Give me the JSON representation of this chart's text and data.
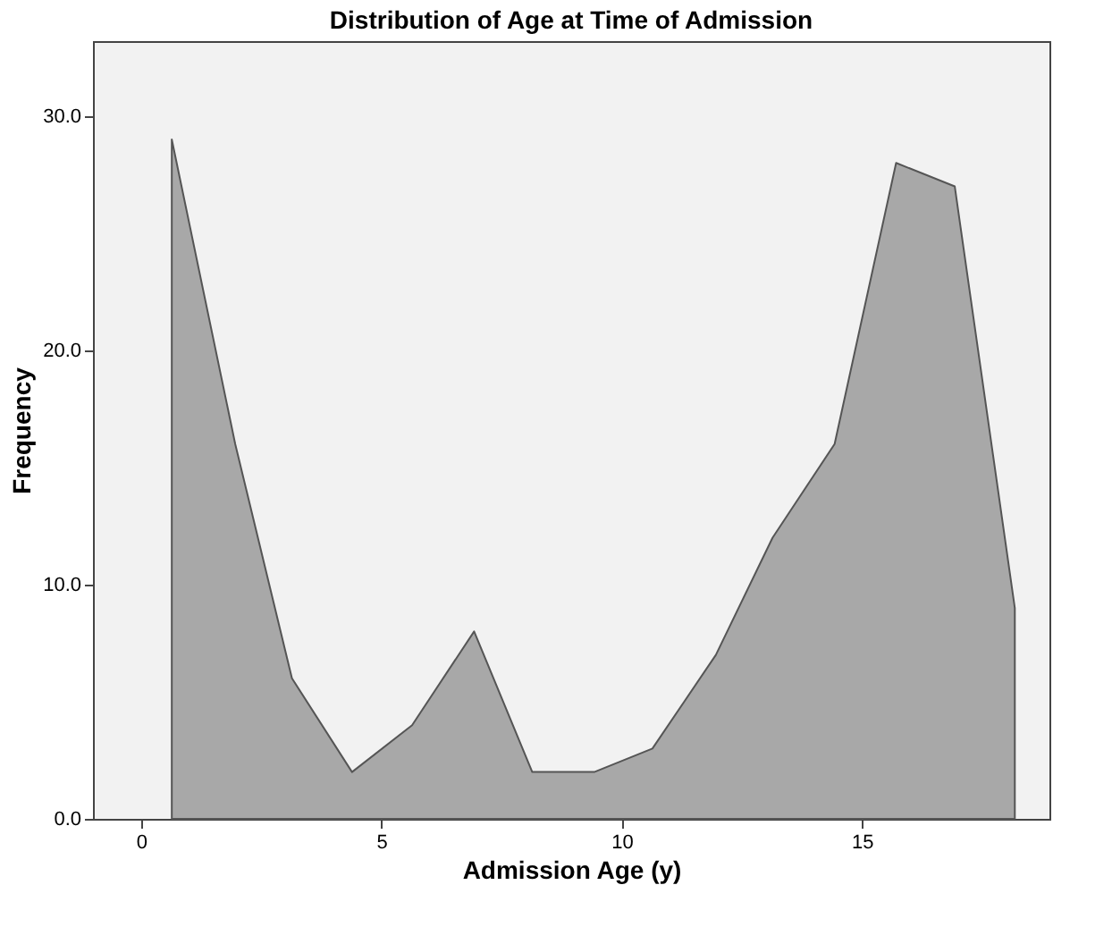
{
  "chart_data": {
    "type": "area",
    "title": "Distribution of Age at Time of Admission",
    "xlabel": "Admission Age (y)",
    "ylabel": "Frequency",
    "x": [
      0.64,
      1.96,
      3.14,
      4.39,
      5.64,
      6.93,
      8.14,
      9.43,
      10.64,
      11.96,
      13.14,
      14.43,
      15.71,
      16.93,
      18.18
    ],
    "series": [
      {
        "color": "#a8a8a8",
        "values": [
          29,
          16,
          6,
          2,
          4,
          8,
          2,
          2,
          3,
          7,
          12,
          16,
          28,
          27,
          9
        ]
      }
    ],
    "xlim": [
      -1,
      18.9
    ],
    "xticks": [
      0,
      5,
      10,
      15
    ],
    "ylim": [
      0,
      33.2
    ],
    "yticks": [
      {
        "value": 0,
        "label": "0.0"
      },
      {
        "value": 10,
        "label": "10.0"
      },
      {
        "value": 20,
        "label": "20.0"
      },
      {
        "value": 30,
        "label": "30.0"
      }
    ],
    "grid": false
  }
}
